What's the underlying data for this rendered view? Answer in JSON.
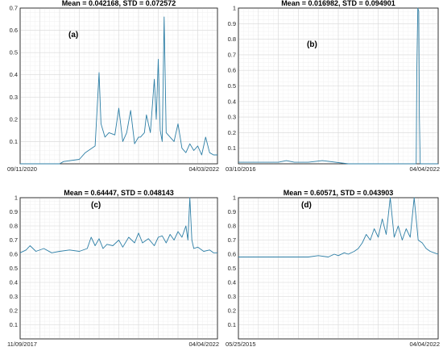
{
  "chart_data": [
    {
      "type": "line",
      "panel": "(a)",
      "title": "Mean = 0.042168, STD = 0.072572",
      "x_start_label": "09/11/2020",
      "x_end_label": "04/03/2022",
      "ylim": [
        0,
        0.7
      ],
      "yticks": [
        "0.1",
        "0.2",
        "0.3",
        "0.4",
        "0.5",
        "0.6",
        "0.7"
      ],
      "grid": true,
      "color": "#2e7fa6",
      "x": [
        0.0,
        0.1,
        0.2,
        0.22,
        0.3,
        0.33,
        0.38,
        0.4,
        0.41,
        0.43,
        0.45,
        0.48,
        0.5,
        0.52,
        0.54,
        0.56,
        0.58,
        0.6,
        0.61,
        0.63,
        0.64,
        0.66,
        0.68,
        0.69,
        0.7,
        0.71,
        0.72,
        0.73,
        0.74,
        0.76,
        0.78,
        0.8,
        0.82,
        0.84,
        0.86,
        0.88,
        0.9,
        0.92,
        0.94,
        0.96,
        0.98,
        1.0
      ],
      "values": [
        0.0,
        0.0,
        0.0,
        0.01,
        0.02,
        0.05,
        0.08,
        0.41,
        0.18,
        0.12,
        0.14,
        0.13,
        0.25,
        0.1,
        0.14,
        0.24,
        0.09,
        0.12,
        0.12,
        0.14,
        0.22,
        0.14,
        0.38,
        0.2,
        0.47,
        0.15,
        0.1,
        0.66,
        0.14,
        0.12,
        0.1,
        0.18,
        0.07,
        0.05,
        0.09,
        0.06,
        0.08,
        0.04,
        0.12,
        0.05,
        0.04,
        0.04
      ]
    },
    {
      "type": "line",
      "panel": "(b)",
      "title": "Mean = 0.016982, STD = 0.094901",
      "x_start_label": "03/10/2016",
      "x_end_label": "04/04/2022",
      "ylim": [
        0,
        1
      ],
      "yticks": [
        "0.1",
        "0.2",
        "0.3",
        "0.4",
        "0.5",
        "0.6",
        "0.7",
        "0.8",
        "0.9",
        "1"
      ],
      "grid": true,
      "color": "#2e7fa6",
      "x": [
        0.0,
        0.1,
        0.2,
        0.24,
        0.28,
        0.35,
        0.42,
        0.55,
        0.6,
        0.7,
        0.8,
        0.88,
        0.89,
        0.893,
        0.898,
        0.903,
        0.906,
        0.91,
        1.0
      ],
      "values": [
        0.01,
        0.01,
        0.01,
        0.02,
        0.01,
        0.01,
        0.02,
        0.0,
        0.0,
        0.0,
        0.0,
        0.0,
        0.0,
        0.6,
        1.0,
        0.98,
        0.3,
        0.0,
        0.0
      ]
    },
    {
      "type": "line",
      "panel": "(c)",
      "title": "Mean = 0.64447, STD = 0.048143",
      "x_start_label": "11/09/2017",
      "x_end_label": "04/04/2022",
      "ylim": [
        0,
        1
      ],
      "yticks": [
        "0.1",
        "0.2",
        "0.3",
        "0.4",
        "0.5",
        "0.6",
        "0.7",
        "0.8",
        "0.9",
        "1"
      ],
      "grid": true,
      "color": "#2e7fa6",
      "x": [
        0.0,
        0.03,
        0.05,
        0.08,
        0.12,
        0.16,
        0.2,
        0.25,
        0.3,
        0.34,
        0.36,
        0.38,
        0.4,
        0.42,
        0.44,
        0.47,
        0.5,
        0.52,
        0.55,
        0.58,
        0.6,
        0.62,
        0.65,
        0.68,
        0.7,
        0.72,
        0.74,
        0.76,
        0.78,
        0.8,
        0.82,
        0.84,
        0.85,
        0.86,
        0.87,
        0.88,
        0.9,
        0.93,
        0.96,
        0.98,
        1.0
      ],
      "values": [
        0.61,
        0.63,
        0.66,
        0.62,
        0.64,
        0.61,
        0.62,
        0.63,
        0.62,
        0.64,
        0.72,
        0.66,
        0.71,
        0.64,
        0.67,
        0.66,
        0.7,
        0.65,
        0.72,
        0.68,
        0.75,
        0.68,
        0.71,
        0.66,
        0.72,
        0.73,
        0.68,
        0.74,
        0.7,
        0.76,
        0.72,
        0.8,
        0.7,
        1.0,
        0.7,
        0.64,
        0.65,
        0.62,
        0.63,
        0.61,
        0.61
      ]
    },
    {
      "type": "line",
      "panel": "(d)",
      "title": "Mean = 0.60571, STD = 0.043903",
      "x_start_label": "05/25/2015",
      "x_end_label": "04/04/2022",
      "ylim": [
        0,
        1
      ],
      "yticks": [
        "0.1",
        "0.2",
        "0.3",
        "0.4",
        "0.5",
        "0.6",
        "0.7",
        "0.8",
        "0.9",
        "1"
      ],
      "grid": true,
      "color": "#2e7fa6",
      "x": [
        0.0,
        0.2,
        0.35,
        0.4,
        0.45,
        0.48,
        0.5,
        0.53,
        0.55,
        0.58,
        0.6,
        0.62,
        0.64,
        0.66,
        0.68,
        0.7,
        0.72,
        0.74,
        0.76,
        0.78,
        0.8,
        0.82,
        0.84,
        0.86,
        0.88,
        0.9,
        0.92,
        0.94,
        0.96,
        0.98,
        1.0
      ],
      "values": [
        0.58,
        0.58,
        0.58,
        0.59,
        0.58,
        0.6,
        0.59,
        0.61,
        0.6,
        0.62,
        0.64,
        0.68,
        0.74,
        0.7,
        0.78,
        0.72,
        0.85,
        0.74,
        1.0,
        0.72,
        0.8,
        0.7,
        0.78,
        0.72,
        1.0,
        0.7,
        0.68,
        0.64,
        0.62,
        0.61,
        0.6
      ]
    }
  ]
}
